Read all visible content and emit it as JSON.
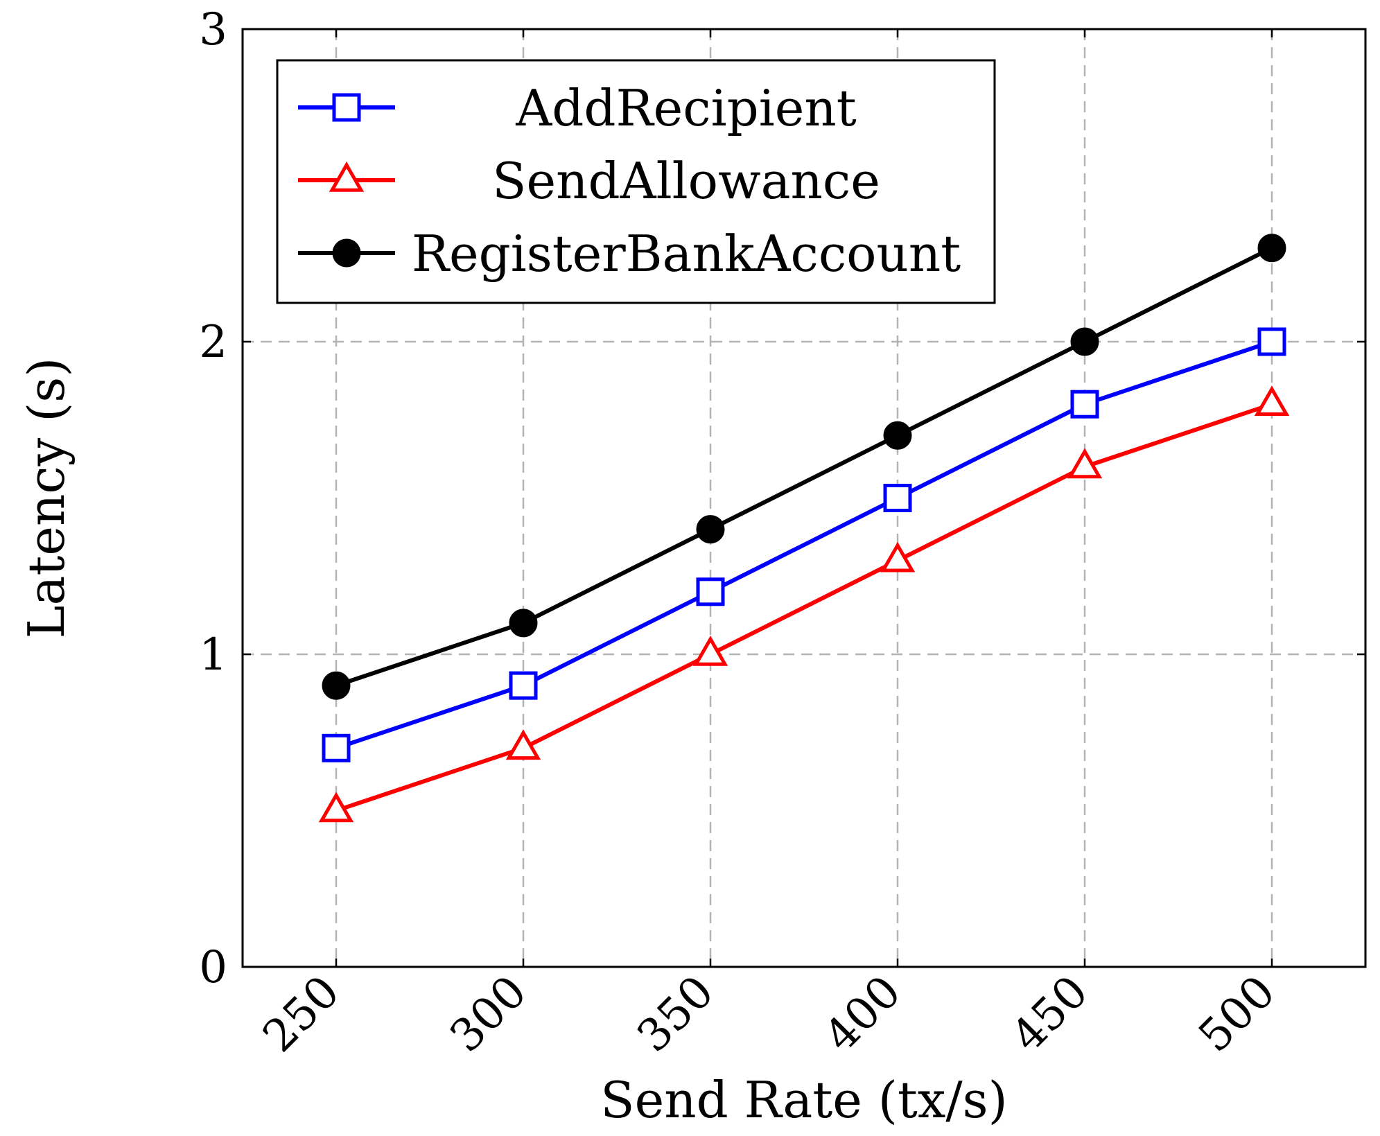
{
  "chart_data": {
    "type": "line",
    "title": "",
    "xlabel": "Send Rate (tx/s)",
    "ylabel": "Latency (s)",
    "x": [
      250,
      300,
      350,
      400,
      450,
      500
    ],
    "x_tick_labels": [
      "250",
      "300",
      "350",
      "400",
      "450",
      "500"
    ],
    "xlim": [
      225,
      525
    ],
    "ylim": [
      0,
      3
    ],
    "y_ticks": [
      0,
      1,
      2,
      3
    ],
    "y_tick_labels": [
      "0",
      "1",
      "2",
      "3"
    ],
    "grid": true,
    "grid_style": "dashed",
    "legend_position": "top-left",
    "series": [
      {
        "name": "AddRecipient",
        "color": "#0000ff",
        "marker": "open-square",
        "values": [
          0.7,
          0.9,
          1.2,
          1.5,
          1.8,
          2.0
        ]
      },
      {
        "name": "SendAllowance",
        "color": "#ff0000",
        "marker": "open-triangle",
        "values": [
          0.5,
          0.7,
          1.0,
          1.3,
          1.6,
          1.8
        ]
      },
      {
        "name": "RegisterBankAccount",
        "color": "#000000",
        "marker": "filled-circle",
        "values": [
          0.9,
          1.1,
          1.4,
          1.7,
          2.0,
          2.3
        ]
      }
    ]
  }
}
